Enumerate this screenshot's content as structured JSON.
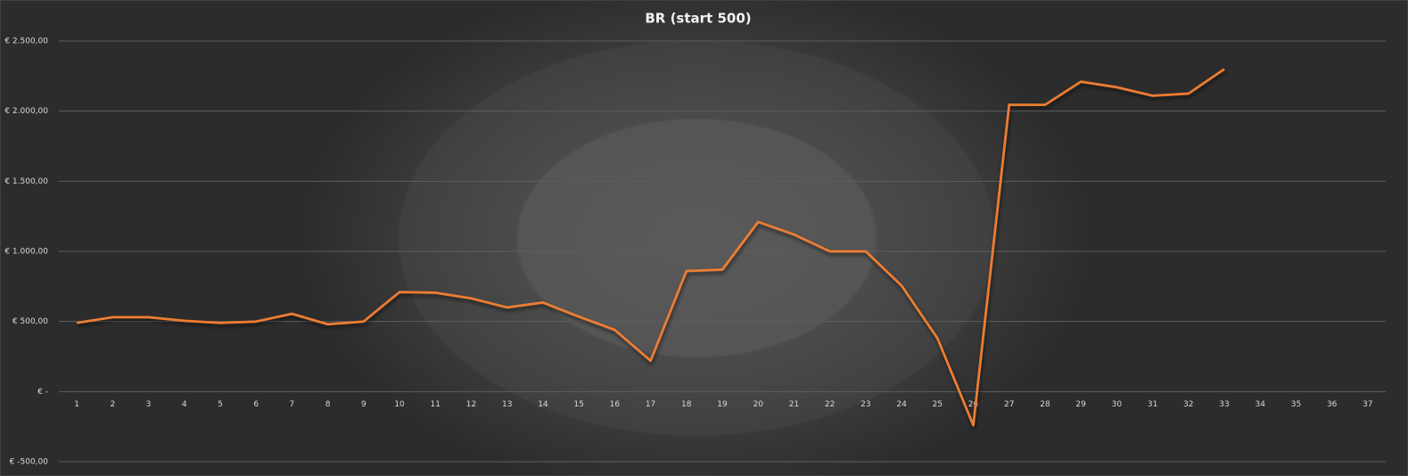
{
  "chart_data": {
    "type": "line",
    "title": "BR (start 500)",
    "categories": [
      "1",
      "2",
      "3",
      "4",
      "5",
      "6",
      "7",
      "8",
      "9",
      "10",
      "11",
      "12",
      "13",
      "14",
      "15",
      "16",
      "17",
      "18",
      "19",
      "20",
      "21",
      "22",
      "23",
      "24",
      "25",
      "26",
      "27",
      "28",
      "29",
      "30",
      "31",
      "32",
      "33",
      "34",
      "35",
      "36",
      "37"
    ],
    "series": [
      {
        "name": "BR",
        "color": "#ed7d31",
        "values": [
          490,
          530,
          530,
          505,
          490,
          500,
          555,
          480,
          500,
          710,
          705,
          665,
          600,
          635,
          535,
          440,
          220,
          860,
          870,
          1210,
          1120,
          1000,
          1000,
          755,
          380,
          -240,
          2045,
          2045,
          2210,
          2170,
          2110,
          2125,
          2300,
          null,
          null,
          null,
          null
        ]
      }
    ],
    "ylim": [
      -500,
      2500
    ],
    "yticks": [
      {
        "value": -500,
        "label": "€ -500,00"
      },
      {
        "value": 0,
        "label": "€ -"
      },
      {
        "value": 500,
        "label": "€ 500,00"
      },
      {
        "value": 1000,
        "label": "€ 1.000,00"
      },
      {
        "value": 1500,
        "label": "€ 1.500,00"
      },
      {
        "value": 2000,
        "label": "€ 2.000,00"
      },
      {
        "value": 2500,
        "label": "€ 2.500,00"
      }
    ],
    "grid": true
  }
}
